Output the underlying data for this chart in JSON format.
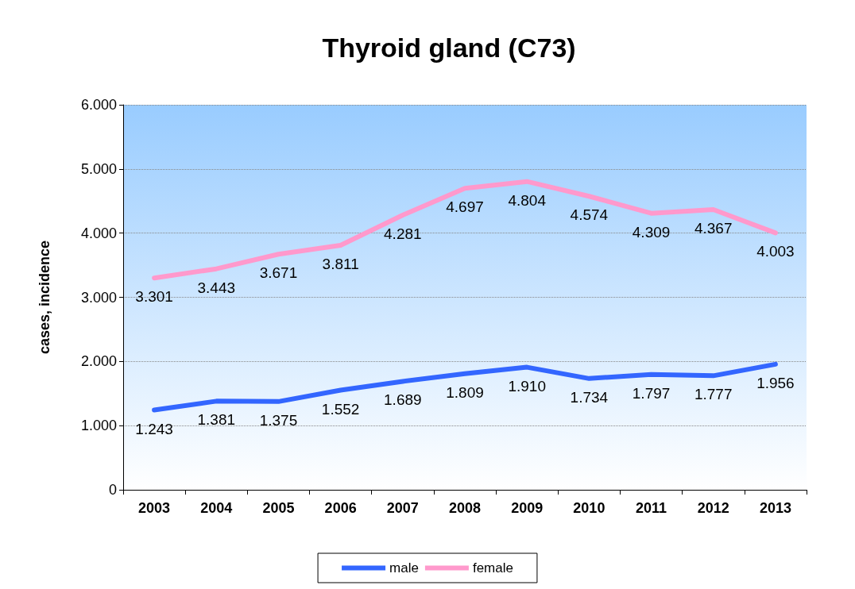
{
  "chart_data": {
    "type": "line",
    "title": "Thyroid gland (C73)",
    "ylabel": "cases, incidence",
    "categories": [
      "2003",
      "2004",
      "2005",
      "2006",
      "2007",
      "2008",
      "2009",
      "2010",
      "2011",
      "2012",
      "2013"
    ],
    "series": [
      {
        "name": "male",
        "color": "#3366ff",
        "values": [
          1243,
          1381,
          1375,
          1552,
          1689,
          1809,
          1910,
          1734,
          1797,
          1777,
          1956
        ],
        "value_labels": [
          "1.243",
          "1.381",
          "1.375",
          "1.552",
          "1.689",
          "1.809",
          "1.910",
          "1.734",
          "1.797",
          "1.777",
          "1.956"
        ]
      },
      {
        "name": "female",
        "color": "#ff99cc",
        "values": [
          3301,
          3443,
          3671,
          3811,
          4281,
          4697,
          4804,
          4574,
          4309,
          4367,
          4003
        ],
        "value_labels": [
          "3.301",
          "3.443",
          "3.671",
          "3.811",
          "4.281",
          "4.697",
          "4.804",
          "4.574",
          "4.309",
          "4.367",
          "4.003"
        ]
      }
    ],
    "ylim": [
      0,
      6000
    ],
    "yticks": [
      0,
      {
        "value": 1000,
        "label": "1.000"
      },
      {
        "value": 2000,
        "label": "2.000"
      },
      {
        "value": 3000,
        "label": "3.000"
      },
      {
        "value": 4000,
        "label": "4.000"
      },
      {
        "value": 5000,
        "label": "5.000"
      },
      {
        "value": 6000,
        "label": "6.000"
      }
    ],
    "grid": "y",
    "legend": "bottom",
    "marker": "none",
    "line_style": "solid"
  }
}
